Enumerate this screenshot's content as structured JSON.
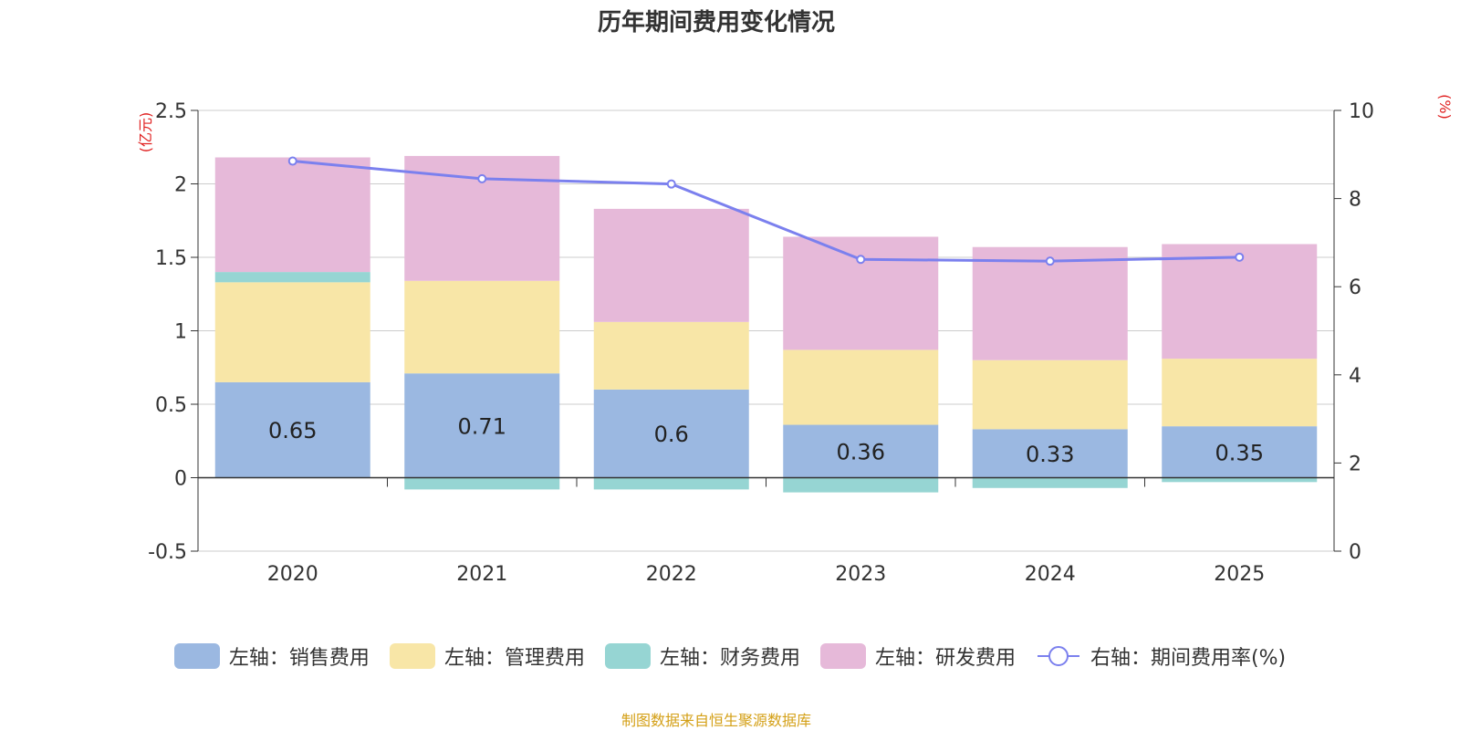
{
  "chart_data": {
    "type": "bar",
    "stacked": true,
    "title": "历年期间费用变化情况",
    "categories": [
      "2020",
      "2021",
      "2022",
      "2023",
      "2024",
      "2025"
    ],
    "left_axis": {
      "label": "(亿元)",
      "ylim": [
        -0.5,
        2.5
      ],
      "ticks": [
        "-0.5",
        "0",
        "0.5",
        "1",
        "1.5",
        "2",
        "2.5"
      ]
    },
    "right_axis": {
      "label": "(%)",
      "ylim": [
        0,
        10
      ],
      "ticks": [
        "0",
        "2",
        "4",
        "6",
        "8",
        "10"
      ]
    },
    "series": [
      {
        "name": "左轴：销售费用",
        "axis": "left",
        "color": "#9bb8e1",
        "values": [
          0.65,
          0.71,
          0.6,
          0.36,
          0.33,
          0.35
        ],
        "labels": [
          "0.65",
          "0.71",
          "0.6",
          "0.36",
          "0.33",
          "0.35"
        ]
      },
      {
        "name": "左轴：管理费用",
        "axis": "left",
        "color": "#f8e6a7",
        "values": [
          0.68,
          0.63,
          0.46,
          0.51,
          0.47,
          0.46
        ]
      },
      {
        "name": "左轴：财务费用",
        "axis": "left",
        "color": "#96d5d3",
        "values": [
          0.07,
          -0.08,
          -0.08,
          -0.1,
          -0.07,
          -0.03
        ]
      },
      {
        "name": "左轴：研发费用",
        "axis": "left",
        "color": "#e6b9d9",
        "values": [
          0.78,
          0.85,
          0.77,
          0.77,
          0.77,
          0.78
        ]
      },
      {
        "name": "右轴：期间费用率(%)",
        "axis": "right",
        "type": "line",
        "color": "#7b80ee",
        "values": [
          8.85,
          8.45,
          8.33,
          6.62,
          6.58,
          6.67
        ]
      }
    ],
    "grid": true,
    "legend": "bottom-center"
  },
  "source_note": "制图数据来自恒生聚源数据库"
}
